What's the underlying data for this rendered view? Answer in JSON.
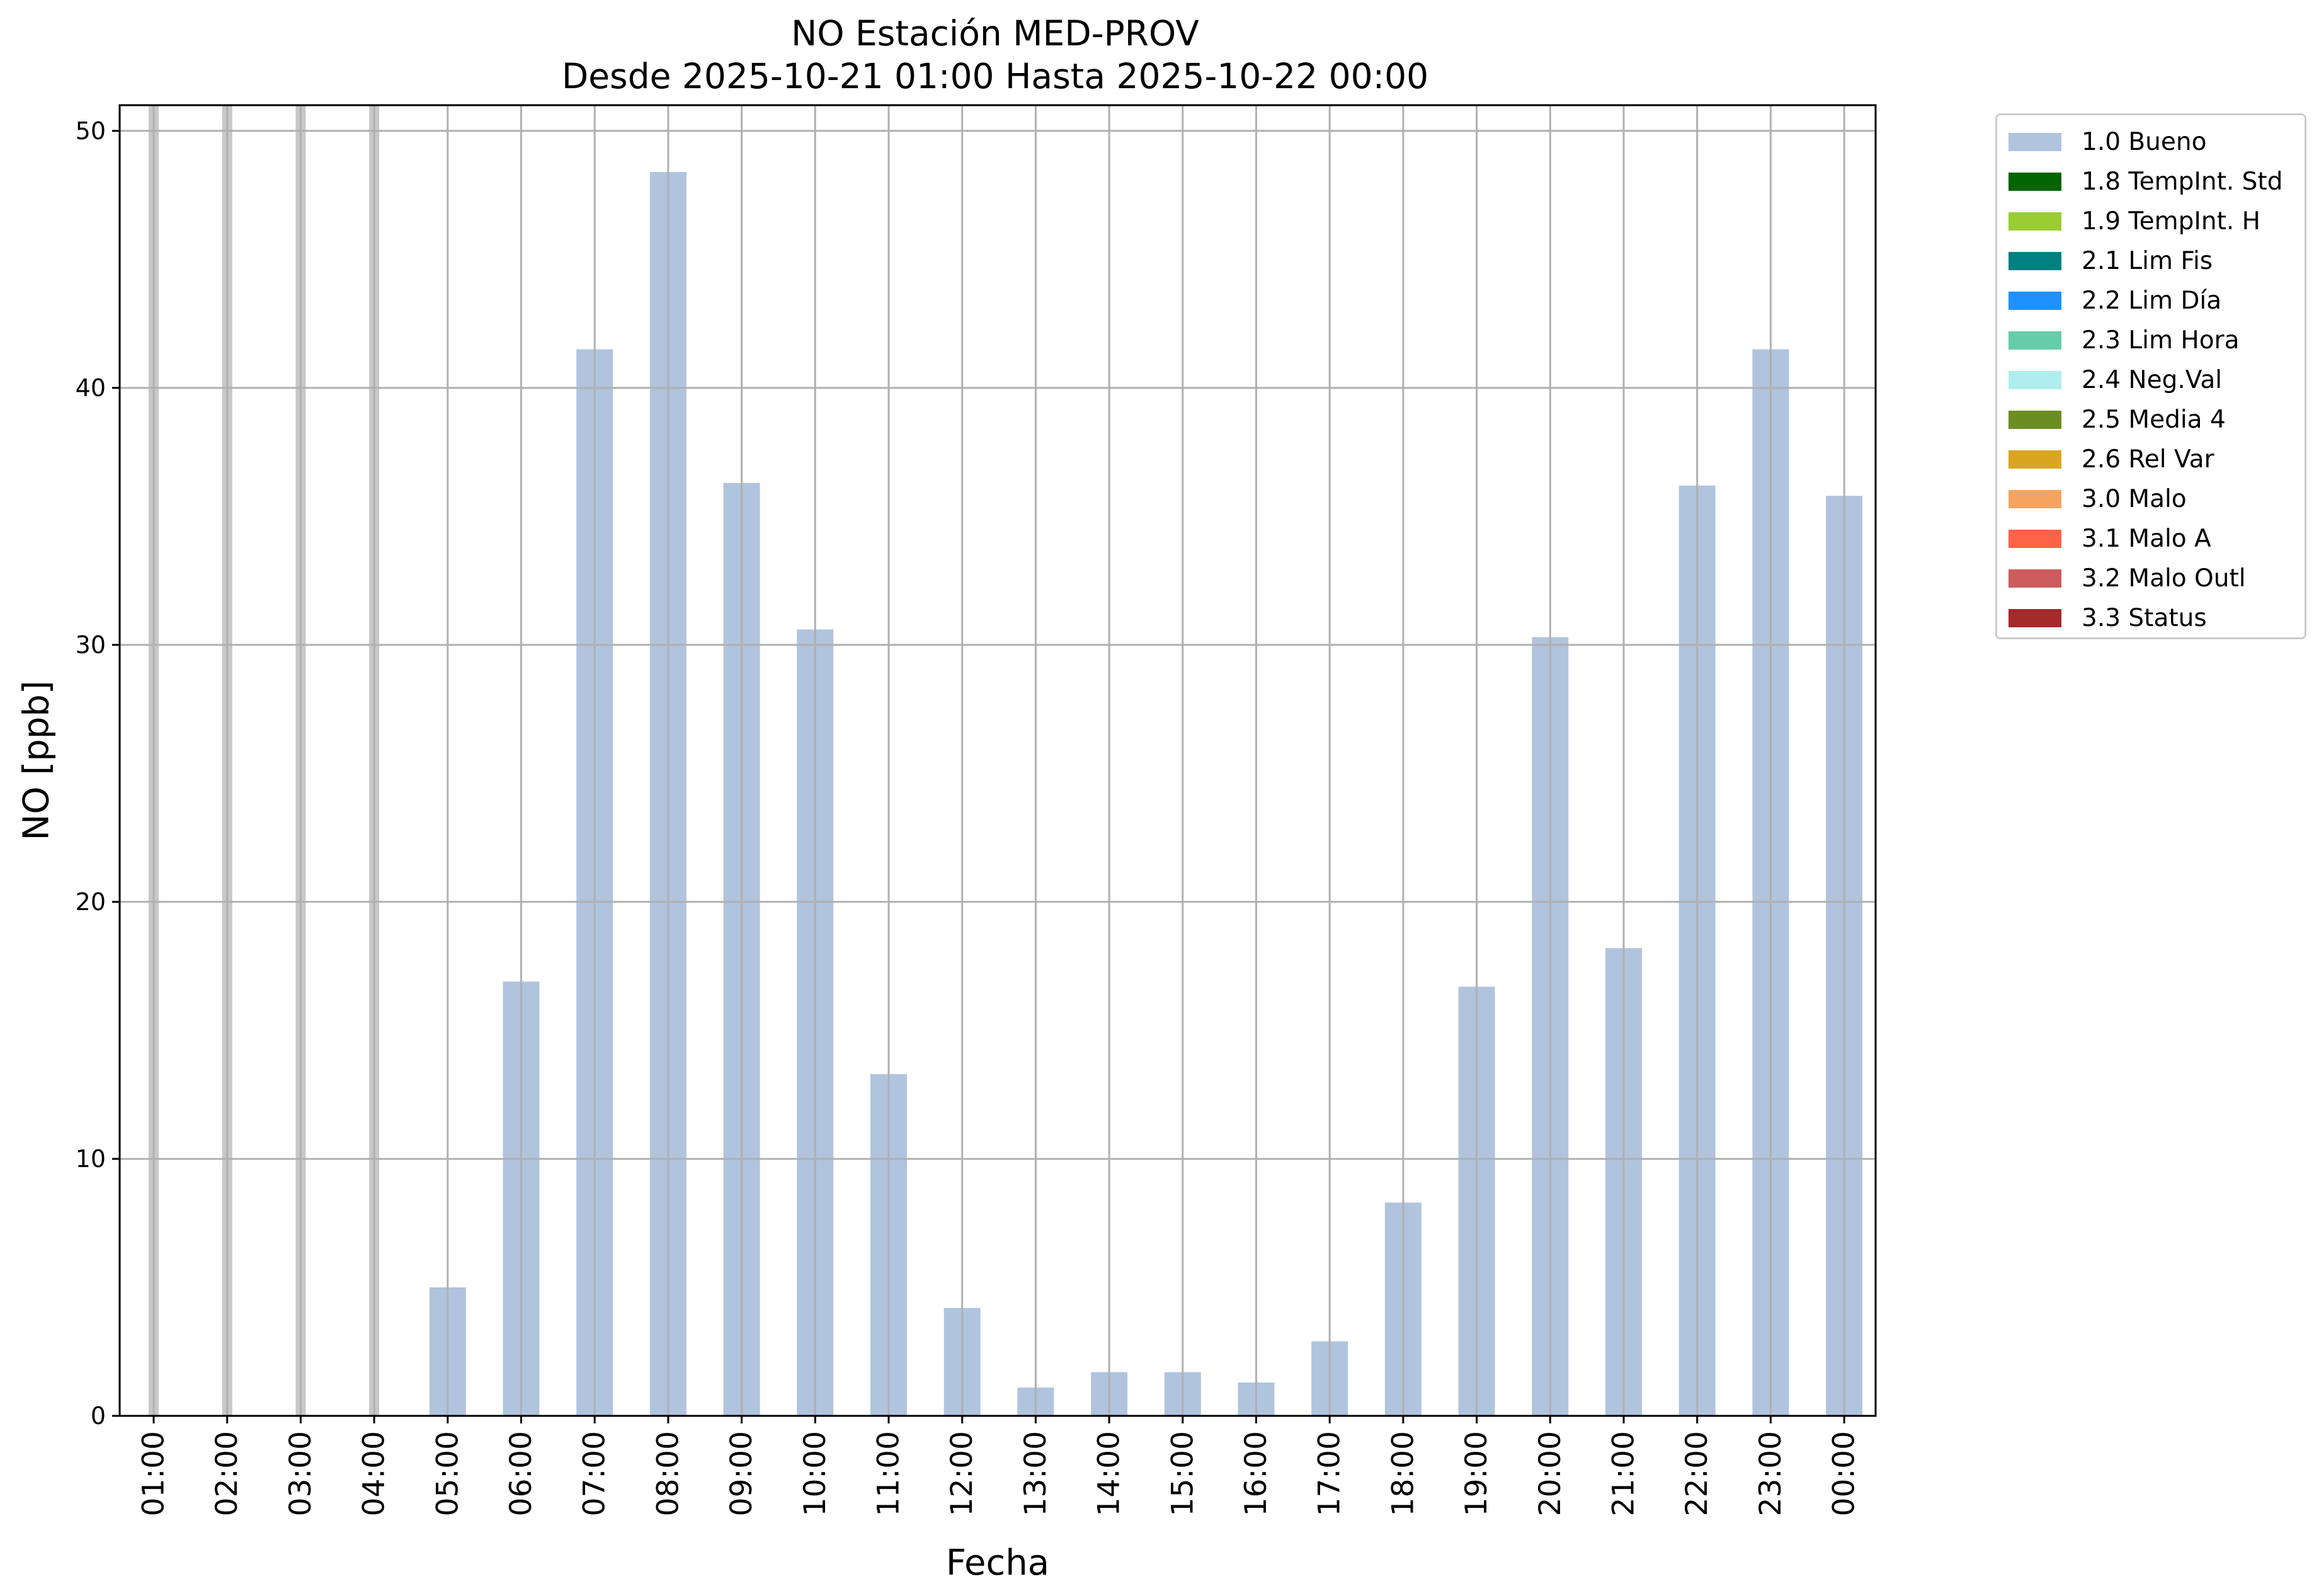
{
  "chart_data": {
    "type": "bar",
    "title": "NO Estación MED-PROV",
    "subtitle": "Desde 2025-10-21 01:00 Hasta 2025-10-22 00:00",
    "xlabel": "Fecha",
    "ylabel": "NO [ppb]",
    "ylim": [
      0,
      51
    ],
    "yticks": [
      "0",
      "10",
      "20",
      "30",
      "40",
      "50"
    ],
    "grid": true,
    "categories": [
      "01:00",
      "02:00",
      "03:00",
      "04:00",
      "05:00",
      "06:00",
      "07:00",
      "08:00",
      "09:00",
      "10:00",
      "11:00",
      "12:00",
      "13:00",
      "14:00",
      "15:00",
      "16:00",
      "17:00",
      "18:00",
      "19:00",
      "20:00",
      "21:00",
      "22:00",
      "23:00",
      "00:00"
    ],
    "missing_markers": [
      "01:00",
      "02:00",
      "03:00",
      "04:00"
    ],
    "series": [
      {
        "name": "1.0 Bueno",
        "color": "#b0c4de",
        "values": [
          null,
          null,
          null,
          null,
          5.0,
          16.9,
          41.5,
          48.4,
          36.3,
          30.6,
          13.3,
          4.2,
          1.1,
          1.7,
          1.7,
          1.3,
          2.9,
          8.3,
          16.7,
          30.3,
          18.2,
          36.2,
          41.5,
          35.8
        ]
      }
    ],
    "legend": {
      "position": "outside-top-right",
      "entries": [
        {
          "label": "1.0 Bueno",
          "color": "#b0c4de"
        },
        {
          "label": "1.8 TempInt. Std",
          "color": "#006400"
        },
        {
          "label": "1.9 TempInt. H",
          "color": "#9acd32"
        },
        {
          "label": "2.1 Lim Fis",
          "color": "#008080"
        },
        {
          "label": "2.2 Lim Día",
          "color": "#1e90ff"
        },
        {
          "label": "2.3 Lim Hora",
          "color": "#66cdaa"
        },
        {
          "label": "2.4 Neg.Val",
          "color": "#afeeee"
        },
        {
          "label": "2.5 Media 4",
          "color": "#6b8e23"
        },
        {
          "label": "2.6 Rel Var",
          "color": "#daa520"
        },
        {
          "label": "3.0 Malo",
          "color": "#f4a460"
        },
        {
          "label": "3.1 Malo A",
          "color": "#ff6347"
        },
        {
          "label": "3.2 Malo Outl",
          "color": "#cd5c5c"
        },
        {
          "label": "3.3 Status",
          "color": "#a52a2a"
        }
      ]
    }
  }
}
